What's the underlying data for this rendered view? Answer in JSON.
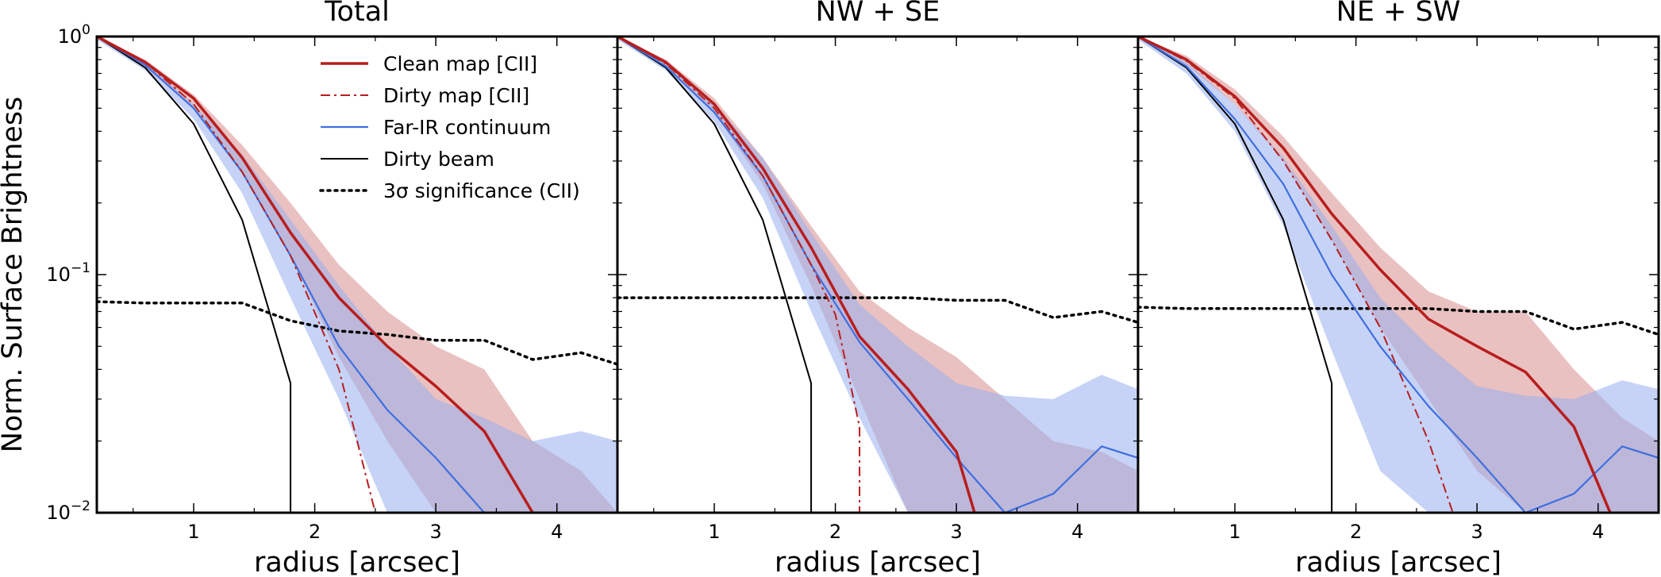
{
  "figure": {
    "ylabel": "Norm. Surface Brightness",
    "legend_placement": "upper-right of first panel",
    "colors": {
      "clean": "#b81e1e",
      "dirty": "#b81e1e",
      "fir": "#3f6fdf",
      "beam": "#000000",
      "sig": "#000000",
      "clean_band": "#d98e8e",
      "fir_band": "#98aeee"
    }
  },
  "legend": [
    {
      "key": "clean",
      "label": "Clean map [CII]"
    },
    {
      "key": "dirty",
      "label": "Dirty map [CII]"
    },
    {
      "key": "fir",
      "label": "Far-IR continuum"
    },
    {
      "key": "beam",
      "label": "Dirty beam"
    },
    {
      "key": "sig",
      "label": "3σ significance (CII)"
    }
  ],
  "chart_data": [
    {
      "type": "line",
      "title": "Total",
      "xlabel": "radius [arcsec]",
      "ylabel": "Norm. Surface Brightness",
      "yscale": "log",
      "xlim": [
        0.2,
        4.5
      ],
      "ylim": [
        0.01,
        1.0
      ],
      "xticks": [
        "1",
        "2",
        "3",
        "4"
      ],
      "yticks": [
        "10^-2",
        "10^-1",
        "10^0"
      ],
      "series": [
        {
          "key": "clean_band",
          "name": "Clean map band",
          "x": [
            0.2,
            0.6,
            1.0,
            1.4,
            1.8,
            2.2,
            2.6,
            3.0,
            3.4,
            3.8,
            4.2,
            4.5
          ],
          "upper": [
            1.0,
            0.8,
            0.57,
            0.35,
            0.2,
            0.11,
            0.07,
            0.05,
            0.04,
            0.02,
            0.015,
            0.01
          ],
          "lower": [
            0.98,
            0.74,
            0.5,
            0.27,
            0.12,
            0.045,
            0.02,
            0.01,
            0.01,
            0.01,
            0.01,
            0.01
          ]
        },
        {
          "key": "fir_band",
          "name": "Far-IR band",
          "x": [
            0.2,
            0.6,
            1.0,
            1.4,
            1.8,
            2.2,
            2.6,
            3.0,
            3.4,
            3.8,
            4.2,
            4.5
          ],
          "upper": [
            1.0,
            0.78,
            0.52,
            0.32,
            0.17,
            0.09,
            0.05,
            0.03,
            0.025,
            0.02,
            0.022,
            0.02
          ],
          "lower": [
            0.97,
            0.72,
            0.45,
            0.22,
            0.08,
            0.03,
            0.01,
            0.01,
            0.01,
            0.01,
            0.01,
            0.01
          ]
        },
        {
          "key": "sig",
          "name": "3σ significance (CII)",
          "x": [
            0.2,
            0.6,
            1.0,
            1.4,
            1.8,
            2.2,
            2.6,
            3.0,
            3.4,
            3.8,
            4.2,
            4.5
          ],
          "y": [
            0.077,
            0.076,
            0.076,
            0.076,
            0.064,
            0.058,
            0.056,
            0.053,
            0.053,
            0.044,
            0.047,
            0.042
          ]
        },
        {
          "key": "beam",
          "name": "Dirty beam",
          "x": [
            0.2,
            0.6,
            1.0,
            1.4,
            1.8,
            1.8
          ],
          "y": [
            1.0,
            0.74,
            0.43,
            0.17,
            0.035,
            0.01
          ]
        },
        {
          "key": "fir",
          "name": "Far-IR continuum",
          "x": [
            0.2,
            0.6,
            1.0,
            1.4,
            1.8,
            2.2,
            2.6,
            3.0,
            3.4
          ],
          "y": [
            1.0,
            0.76,
            0.5,
            0.27,
            0.12,
            0.05,
            0.027,
            0.017,
            0.01
          ]
        },
        {
          "key": "dirty",
          "name": "Dirty map [CII]",
          "x": [
            0.2,
            0.6,
            1.0,
            1.4,
            1.8,
            2.2,
            2.5
          ],
          "y": [
            1.0,
            0.78,
            0.52,
            0.27,
            0.12,
            0.04,
            0.01
          ]
        },
        {
          "key": "clean",
          "name": "Clean map [CII]",
          "x": [
            0.2,
            0.6,
            1.0,
            1.4,
            1.8,
            2.2,
            2.6,
            3.0,
            3.4,
            3.8
          ],
          "y": [
            1.0,
            0.78,
            0.55,
            0.31,
            0.15,
            0.08,
            0.05,
            0.034,
            0.022,
            0.01
          ]
        }
      ]
    },
    {
      "type": "line",
      "title": "NW + SE",
      "xlabel": "radius [arcsec]",
      "yscale": "log",
      "xlim": [
        0.2,
        4.5
      ],
      "ylim": [
        0.01,
        1.0
      ],
      "xticks": [
        "1",
        "2",
        "3",
        "4"
      ],
      "series": [
        {
          "key": "clean_band",
          "name": "Clean map band",
          "x": [
            0.2,
            0.6,
            1.0,
            1.4,
            1.8,
            2.2,
            2.6,
            3.0,
            3.4,
            3.8,
            4.2,
            4.5
          ],
          "upper": [
            1.0,
            0.8,
            0.55,
            0.31,
            0.16,
            0.085,
            0.06,
            0.045,
            0.03,
            0.02,
            0.018,
            0.015
          ],
          "lower": [
            0.98,
            0.74,
            0.48,
            0.24,
            0.09,
            0.03,
            0.01,
            0.01,
            0.01,
            0.01,
            0.01,
            0.01
          ]
        },
        {
          "key": "fir_band",
          "name": "Far-IR band",
          "x": [
            0.2,
            0.6,
            1.0,
            1.4,
            1.8,
            2.2,
            2.6,
            3.0,
            3.4,
            3.8,
            4.2,
            4.5
          ],
          "upper": [
            1.0,
            0.78,
            0.52,
            0.31,
            0.15,
            0.075,
            0.05,
            0.035,
            0.031,
            0.03,
            0.038,
            0.033
          ],
          "lower": [
            0.97,
            0.72,
            0.44,
            0.21,
            0.07,
            0.025,
            0.01,
            0.01,
            0.01,
            0.01,
            0.01,
            0.01
          ]
        },
        {
          "key": "sig",
          "name": "3σ significance (CII)",
          "x": [
            0.2,
            0.6,
            1.0,
            1.4,
            1.8,
            2.2,
            2.6,
            3.0,
            3.4,
            3.8,
            4.2,
            4.5
          ],
          "y": [
            0.08,
            0.08,
            0.08,
            0.08,
            0.08,
            0.08,
            0.08,
            0.078,
            0.078,
            0.066,
            0.07,
            0.063
          ]
        },
        {
          "key": "beam",
          "name": "Dirty beam",
          "x": [
            0.2,
            0.6,
            1.0,
            1.4,
            1.8,
            1.8
          ],
          "y": [
            1.0,
            0.74,
            0.43,
            0.17,
            0.035,
            0.01
          ]
        },
        {
          "key": "fir",
          "name": "Far-IR continuum",
          "x": [
            0.2,
            0.6,
            1.0,
            1.4,
            1.8,
            2.2,
            2.6,
            3.0,
            3.4,
            3.8,
            4.2,
            4.5
          ],
          "y": [
            1.0,
            0.75,
            0.48,
            0.26,
            0.11,
            0.052,
            0.03,
            0.017,
            0.01,
            0.012,
            0.019,
            0.017
          ]
        },
        {
          "key": "dirty",
          "name": "Dirty map [CII]",
          "x": [
            0.2,
            0.6,
            1.0,
            1.4,
            1.8,
            2.0,
            2.2,
            2.2
          ],
          "y": [
            1.0,
            0.77,
            0.5,
            0.26,
            0.11,
            0.068,
            0.023,
            0.01
          ]
        },
        {
          "key": "clean",
          "name": "Clean map [CII]",
          "x": [
            0.2,
            0.6,
            1.0,
            1.4,
            1.8,
            2.2,
            2.6,
            3.0,
            3.15
          ],
          "y": [
            1.0,
            0.78,
            0.52,
            0.28,
            0.13,
            0.055,
            0.033,
            0.018,
            0.01
          ]
        }
      ]
    },
    {
      "type": "line",
      "title": "NE + SW",
      "xlabel": "radius [arcsec]",
      "yscale": "log",
      "xlim": [
        0.2,
        4.5
      ],
      "ylim": [
        0.01,
        1.0
      ],
      "xticks": [
        "1",
        "2",
        "3",
        "4"
      ],
      "series": [
        {
          "key": "clean_band",
          "name": "Clean map band",
          "x": [
            0.2,
            0.6,
            1.0,
            1.4,
            1.8,
            2.2,
            2.6,
            3.0,
            3.4,
            3.8,
            4.2,
            4.5
          ],
          "upper": [
            1.0,
            0.83,
            0.6,
            0.38,
            0.22,
            0.13,
            0.085,
            0.07,
            0.07,
            0.04,
            0.025,
            0.02
          ],
          "lower": [
            0.98,
            0.76,
            0.52,
            0.3,
            0.14,
            0.06,
            0.03,
            0.015,
            0.01,
            0.01,
            0.01,
            0.01
          ]
        },
        {
          "key": "fir_band",
          "name": "Far-IR band",
          "x": [
            0.2,
            0.6,
            1.0,
            1.4,
            1.8,
            2.2,
            2.6,
            3.0,
            3.4,
            3.8,
            4.2,
            4.5
          ],
          "upper": [
            1.0,
            0.78,
            0.52,
            0.31,
            0.16,
            0.08,
            0.05,
            0.034,
            0.031,
            0.03,
            0.036,
            0.033
          ],
          "lower": [
            0.97,
            0.7,
            0.4,
            0.16,
            0.048,
            0.015,
            0.01,
            0.01,
            0.01,
            0.01,
            0.01,
            0.01
          ]
        },
        {
          "key": "sig",
          "name": "3σ significance (CII)",
          "x": [
            0.2,
            0.6,
            1.0,
            1.4,
            1.8,
            2.2,
            2.6,
            3.0,
            3.4,
            3.8,
            4.2,
            4.5
          ],
          "y": [
            0.073,
            0.072,
            0.072,
            0.072,
            0.072,
            0.072,
            0.072,
            0.07,
            0.07,
            0.059,
            0.063,
            0.056
          ]
        },
        {
          "key": "beam",
          "name": "Dirty beam",
          "x": [
            0.2,
            0.6,
            1.0,
            1.4,
            1.8,
            1.8
          ],
          "y": [
            1.0,
            0.74,
            0.43,
            0.17,
            0.035,
            0.01
          ]
        },
        {
          "key": "fir",
          "name": "Far-IR continuum",
          "x": [
            0.2,
            0.6,
            1.0,
            1.4,
            1.8,
            2.2,
            2.6,
            3.0,
            3.4,
            3.8,
            4.2,
            4.5
          ],
          "y": [
            1.0,
            0.75,
            0.45,
            0.24,
            0.1,
            0.05,
            0.028,
            0.017,
            0.01,
            0.012,
            0.019,
            0.017
          ]
        },
        {
          "key": "dirty",
          "name": "Dirty map [CII]",
          "x": [
            0.2,
            0.6,
            1.0,
            1.4,
            1.8,
            2.2,
            2.6,
            2.8
          ],
          "y": [
            1.0,
            0.79,
            0.55,
            0.3,
            0.14,
            0.06,
            0.02,
            0.01
          ]
        },
        {
          "key": "clean",
          "name": "Clean map [CII]",
          "x": [
            0.2,
            0.6,
            1.0,
            1.4,
            1.8,
            2.2,
            2.6,
            3.0,
            3.4,
            3.8,
            4.1
          ],
          "y": [
            1.0,
            0.8,
            0.56,
            0.34,
            0.18,
            0.105,
            0.065,
            0.05,
            0.039,
            0.023,
            0.01
          ]
        }
      ]
    }
  ]
}
